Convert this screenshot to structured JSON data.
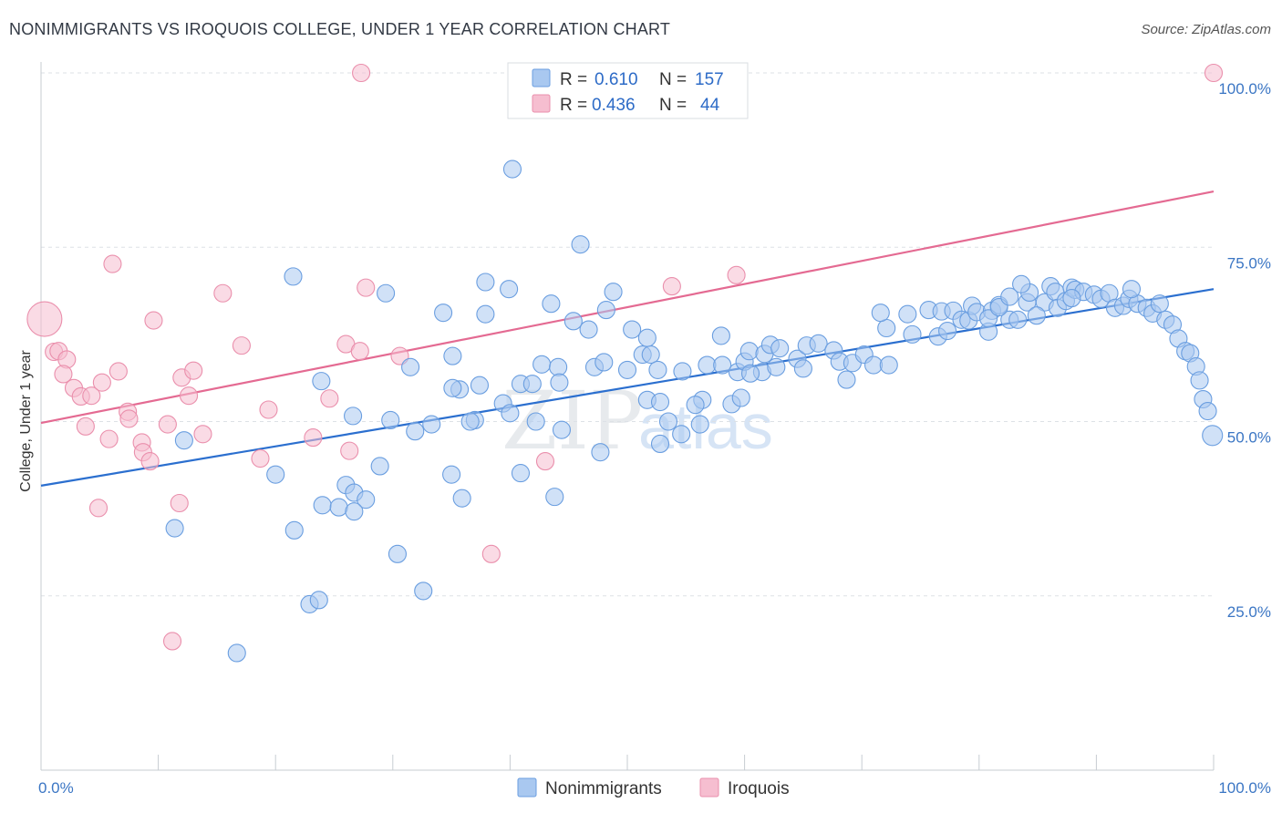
{
  "title": "NONIMMIGRANTS VS IROQUOIS COLLEGE, UNDER 1 YEAR CORRELATION CHART",
  "source": "Source: ZipAtlas.com",
  "watermark": {
    "zip": "ZIP",
    "atlas": "atlas"
  },
  "colors": {
    "blue_fill": "#a9c8f0",
    "blue_stroke": "#6a9ee0",
    "blue_line": "#2b6fcf",
    "pink_fill": "#f6bed0",
    "pink_stroke": "#ea8fac",
    "pink_line": "#e46a92",
    "tick_text": "#3b76c4",
    "grid": "#dde1e6"
  },
  "legend": {
    "rows": [
      {
        "r_label": "R =",
        "r_value": "0.610",
        "n_label": "N =",
        "n_value": "157"
      },
      {
        "r_label": "R =",
        "r_value": "0.436",
        "n_label": "N =",
        "n_value": "44"
      }
    ]
  },
  "chart_data": {
    "type": "scatter",
    "ylabel": "College, Under 1 year",
    "xlim": [
      0,
      100
    ],
    "ylim": [
      0,
      100
    ],
    "x_tick_labels": [
      {
        "value": 0,
        "label": "0.0%"
      },
      {
        "value": 100,
        "label": "100.0%"
      }
    ],
    "y_tick_labels": [
      {
        "value": 25,
        "label": "25.0%"
      },
      {
        "value": 50,
        "label": "50.0%"
      },
      {
        "value": 75,
        "label": "75.0%"
      },
      {
        "value": 100,
        "label": "100.0%"
      }
    ],
    "grid": true,
    "legend_position": "top-center",
    "series": [
      {
        "name": "Nonimmigrants",
        "color": "#a9c8f0",
        "trend": {
          "x": [
            0,
            100
          ],
          "y": [
            40.8,
            69.0
          ]
        },
        "points": [
          [
            40.2,
            86.2
          ],
          [
            46.0,
            75.4
          ],
          [
            21.5,
            70.8
          ],
          [
            37.9,
            70.0
          ],
          [
            39.9,
            69.0
          ],
          [
            29.4,
            68.4
          ],
          [
            48.8,
            68.6
          ],
          [
            43.5,
            66.9
          ],
          [
            48.2,
            66.0
          ],
          [
            34.3,
            65.6
          ],
          [
            37.9,
            65.4
          ],
          [
            45.4,
            64.4
          ],
          [
            46.7,
            63.2
          ],
          [
            50.4,
            63.2
          ],
          [
            35.1,
            59.4
          ],
          [
            31.5,
            57.8
          ],
          [
            42.7,
            58.2
          ],
          [
            44.1,
            57.8
          ],
          [
            47.2,
            57.8
          ],
          [
            48.0,
            58.5
          ],
          [
            51.3,
            59.6
          ],
          [
            52.0,
            59.6
          ],
          [
            50.0,
            57.4
          ],
          [
            52.6,
            57.4
          ],
          [
            54.7,
            57.2
          ],
          [
            56.8,
            58.1
          ],
          [
            58.1,
            58.1
          ],
          [
            59.4,
            57.1
          ],
          [
            61.5,
            57.1
          ],
          [
            23.9,
            55.8
          ],
          [
            35.7,
            54.6
          ],
          [
            37.4,
            55.2
          ],
          [
            40.9,
            55.4
          ],
          [
            41.9,
            55.4
          ],
          [
            44.2,
            55.6
          ],
          [
            35.1,
            54.8
          ],
          [
            39.4,
            52.6
          ],
          [
            40.0,
            51.2
          ],
          [
            26.6,
            50.8
          ],
          [
            29.8,
            50.2
          ],
          [
            31.9,
            48.6
          ],
          [
            37.0,
            50.2
          ],
          [
            33.3,
            49.6
          ],
          [
            36.6,
            50.0
          ],
          [
            42.2,
            50.0
          ],
          [
            44.4,
            48.8
          ],
          [
            51.7,
            53.1
          ],
          [
            52.8,
            52.8
          ],
          [
            56.4,
            53.1
          ],
          [
            55.8,
            52.4
          ],
          [
            58.9,
            52.5
          ],
          [
            59.7,
            53.4
          ],
          [
            53.5,
            50.0
          ],
          [
            56.2,
            49.6
          ],
          [
            54.6,
            48.2
          ],
          [
            52.8,
            46.8
          ],
          [
            12.2,
            47.3
          ],
          [
            20.0,
            42.4
          ],
          [
            28.9,
            43.6
          ],
          [
            35.0,
            42.4
          ],
          [
            40.9,
            42.6
          ],
          [
            47.7,
            45.6
          ],
          [
            26.0,
            40.9
          ],
          [
            26.7,
            39.8
          ],
          [
            24.0,
            38.0
          ],
          [
            25.4,
            37.7
          ],
          [
            27.7,
            38.8
          ],
          [
            26.7,
            37.1
          ],
          [
            35.9,
            39.0
          ],
          [
            43.8,
            39.2
          ],
          [
            11.4,
            34.7
          ],
          [
            21.6,
            34.4
          ],
          [
            30.4,
            31.0
          ],
          [
            32.6,
            25.7
          ],
          [
            22.9,
            23.8
          ],
          [
            23.7,
            24.4
          ],
          [
            16.7,
            16.8
          ],
          [
            51.7,
            62.0
          ],
          [
            58.0,
            62.3
          ],
          [
            60.0,
            58.6
          ],
          [
            60.4,
            60.1
          ],
          [
            61.7,
            59.7
          ],
          [
            62.2,
            61.0
          ],
          [
            63.0,
            60.5
          ],
          [
            64.5,
            59.0
          ],
          [
            65.3,
            60.9
          ],
          [
            66.3,
            61.2
          ],
          [
            67.6,
            60.2
          ],
          [
            68.1,
            58.6
          ],
          [
            69.2,
            58.4
          ],
          [
            70.2,
            59.6
          ],
          [
            71.0,
            58.1
          ],
          [
            72.3,
            58.1
          ],
          [
            65.0,
            57.6
          ],
          [
            68.7,
            56.0
          ],
          [
            60.5,
            56.9
          ],
          [
            62.7,
            57.8
          ],
          [
            72.1,
            63.4
          ],
          [
            74.3,
            62.5
          ],
          [
            76.5,
            62.2
          ],
          [
            77.3,
            63.0
          ],
          [
            71.6,
            65.6
          ],
          [
            73.9,
            65.4
          ],
          [
            75.7,
            66.0
          ],
          [
            76.8,
            65.8
          ],
          [
            77.8,
            65.9
          ],
          [
            78.5,
            64.6
          ],
          [
            79.1,
            64.5
          ],
          [
            79.4,
            66.6
          ],
          [
            79.8,
            65.7
          ],
          [
            80.8,
            62.9
          ],
          [
            81.1,
            65.9
          ],
          [
            81.7,
            66.7
          ],
          [
            82.6,
            64.6
          ],
          [
            83.3,
            64.6
          ],
          [
            84.1,
            67.1
          ],
          [
            84.3,
            68.5
          ],
          [
            85.6,
            67.1
          ],
          [
            86.1,
            69.4
          ],
          [
            86.5,
            68.6
          ],
          [
            86.7,
            66.3
          ],
          [
            87.4,
            67.3
          ],
          [
            87.9,
            69.2
          ],
          [
            88.2,
            68.9
          ],
          [
            88.9,
            68.6
          ],
          [
            89.8,
            68.2
          ],
          [
            90.4,
            67.6
          ],
          [
            91.1,
            68.4
          ],
          [
            91.6,
            66.3
          ],
          [
            92.3,
            66.6
          ],
          [
            92.8,
            67.6
          ],
          [
            93.5,
            66.9
          ],
          [
            94.3,
            66.3
          ],
          [
            94.8,
            65.5
          ],
          [
            95.4,
            66.9
          ],
          [
            95.9,
            64.6
          ],
          [
            96.5,
            63.9
          ],
          [
            97.0,
            61.9
          ],
          [
            97.6,
            60.1
          ],
          [
            98.0,
            59.8
          ],
          [
            98.5,
            57.9
          ],
          [
            98.8,
            55.9
          ],
          [
            99.1,
            53.2
          ],
          [
            99.5,
            51.5
          ],
          [
            99.9,
            48.0
          ],
          [
            93.0,
            69.0
          ],
          [
            83.6,
            69.7
          ],
          [
            80.8,
            64.8
          ],
          [
            81.7,
            66.4
          ],
          [
            82.6,
            67.9
          ],
          [
            84.9,
            65.2
          ],
          [
            87.9,
            67.7
          ]
        ]
      },
      {
        "name": "Iroquois",
        "color": "#f6bed0",
        "trend": {
          "x": [
            0,
            100
          ],
          "y": [
            49.8,
            83.0
          ]
        },
        "points": [
          [
            27.3,
            100.0
          ],
          [
            100.0,
            100.0
          ],
          [
            0.3,
            64.7
          ],
          [
            6.1,
            72.6
          ],
          [
            9.6,
            64.5
          ],
          [
            15.5,
            68.4
          ],
          [
            17.1,
            60.9
          ],
          [
            27.7,
            69.2
          ],
          [
            59.3,
            71.0
          ],
          [
            53.8,
            69.4
          ],
          [
            1.1,
            60.0
          ],
          [
            1.5,
            60.1
          ],
          [
            2.2,
            58.9
          ],
          [
            1.9,
            56.8
          ],
          [
            2.8,
            54.8
          ],
          [
            3.4,
            53.6
          ],
          [
            4.3,
            53.7
          ],
          [
            5.2,
            55.6
          ],
          [
            6.6,
            57.2
          ],
          [
            7.4,
            51.4
          ],
          [
            7.5,
            50.4
          ],
          [
            8.6,
            47.0
          ],
          [
            8.7,
            45.6
          ],
          [
            9.3,
            44.3
          ],
          [
            10.8,
            49.6
          ],
          [
            12.0,
            56.3
          ],
          [
            12.6,
            53.7
          ],
          [
            13.0,
            57.3
          ],
          [
            13.8,
            48.2
          ],
          [
            3.8,
            49.3
          ],
          [
            5.8,
            47.5
          ],
          [
            4.9,
            37.6
          ],
          [
            11.8,
            38.3
          ],
          [
            19.4,
            51.7
          ],
          [
            18.7,
            44.7
          ],
          [
            23.2,
            47.7
          ],
          [
            24.6,
            53.3
          ],
          [
            26.0,
            61.1
          ],
          [
            26.3,
            45.8
          ],
          [
            27.2,
            60.1
          ],
          [
            30.6,
            59.4
          ],
          [
            43.0,
            44.3
          ],
          [
            38.4,
            31.0
          ],
          [
            11.2,
            18.5
          ]
        ]
      }
    ]
  }
}
